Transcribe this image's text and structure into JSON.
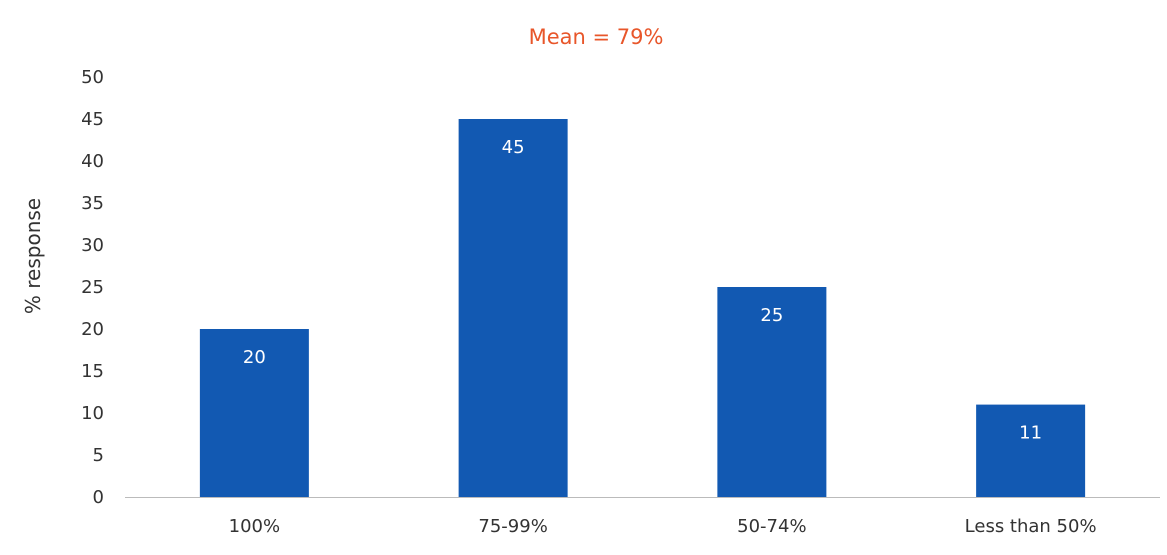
{
  "chart_data": {
    "type": "bar",
    "title": "Mean = 79%",
    "ylabel": "% response",
    "xlabel": "",
    "categories": [
      "100%",
      "75-99%",
      "50-74%",
      "Less than 50%"
    ],
    "values": [
      20,
      45,
      25,
      11
    ],
    "data_labels": [
      "20",
      "45",
      "25",
      "11"
    ],
    "ylim": [
      0,
      50
    ],
    "yticks": [
      "0",
      "5",
      "10",
      "15",
      "20",
      "25",
      "30",
      "35",
      "40",
      "45",
      "50"
    ],
    "grid": false,
    "legend": "none",
    "colors": {
      "bar": "#1259B2",
      "title": "#E8562A",
      "axis": "#BBBBBB"
    }
  }
}
